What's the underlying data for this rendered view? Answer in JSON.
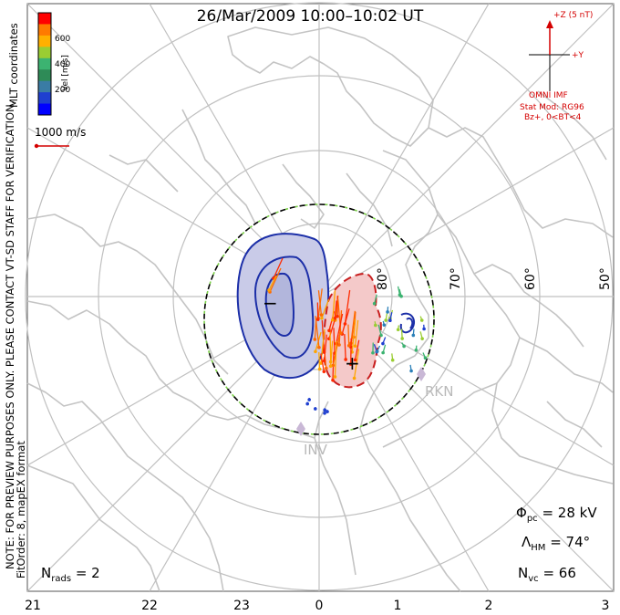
{
  "title": "26/Mar/2009 10:00–10:02 UT",
  "coordinate_label": "MLT coordinates",
  "velocity_scale": {
    "unit_label": "Vel [m/s]",
    "ticks": [
      "600",
      "400",
      "200"
    ],
    "colors": [
      "#ff0000",
      "#ff7a00",
      "#ffb000",
      "#9acd32",
      "#3cb371",
      "#2e8b57",
      "#3a7ca5",
      "#1f3fd0",
      "#0000ff"
    ]
  },
  "reference_vector": {
    "label": "1000 m/s",
    "color": "#d40000"
  },
  "imf": {
    "z_label": "+Z (5 nT)",
    "y_label": "+Y",
    "source": "OMNI IMF",
    "model_line1": "Stat Mod: RG96",
    "model_line2": "Bz+, 0<BT<4",
    "color": "#d40000"
  },
  "note_line1": "NOTE: FOR PREVIEW PURPOSES ONLY. PLEASE CONTACT VT-SD STAFF FOR VERIFICATION.",
  "note_line2": "FitOrder: 8, mapEX format",
  "stats": {
    "phi_pc": {
      "symbol": "Φ",
      "sub": "pc",
      "value": "= 28 kV"
    },
    "lambda_hm": {
      "symbol": "Λ",
      "sub": "HM",
      "value": "= 74°"
    },
    "n_vc": {
      "symbol": "N",
      "sub": "vc",
      "value": "= 66"
    },
    "n_rads": {
      "symbol": "N",
      "sub": "rads",
      "value": "= 2"
    }
  },
  "latitude_labels": [
    "80°",
    "70°",
    "60°",
    "50°"
  ],
  "mlt_axis_labels": [
    "21",
    "22",
    "23",
    "0",
    "1",
    "2",
    "3"
  ],
  "sites": [
    "RKN",
    "INV"
  ],
  "contour_signs": {
    "negative": "−",
    "positive": "+"
  },
  "colors": {
    "coast": "#c4c4c4",
    "grid": "#c0c0c0",
    "neg_contour": "#1c2fa8",
    "pos_contour": "#c81e1e",
    "neg_fill": "#c9cbe8",
    "pos_fill": "#f4c9c9",
    "site_marker": "#c9b8d6"
  }
}
